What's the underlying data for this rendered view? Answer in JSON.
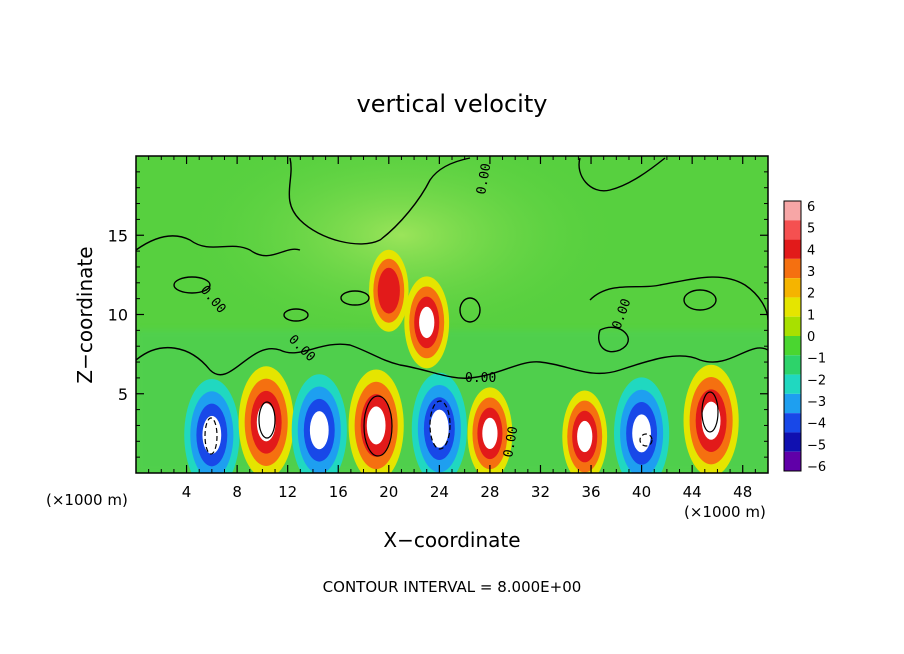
{
  "chart_data": {
    "type": "heatmap",
    "title": "vertical velocity",
    "xlabel": "X−coordinate",
    "ylabel": "Z−coordinate",
    "x_unit_left": "(×1000 m)",
    "x_unit_right": "(×1000 m)",
    "xlim": [
      0,
      50
    ],
    "ylim": [
      0,
      20
    ],
    "x_ticks": [
      4,
      8,
      12,
      16,
      20,
      24,
      28,
      32,
      36,
      40,
      44,
      48
    ],
    "y_ticks": [
      5,
      10,
      15
    ],
    "colorbar": {
      "ticks": [
        "6",
        "5",
        "4",
        "3",
        "2",
        "1",
        "0",
        "−1",
        "−2",
        "−3",
        "−4",
        "−5",
        "−6"
      ],
      "colors": [
        "#f7a6a6",
        "#f55050",
        "#e21a1a",
        "#f57010",
        "#f5b400",
        "#e5e500",
        "#a8e000",
        "#4ad630",
        "#2dd36a",
        "#20d8c0",
        "#1e9ff0",
        "#1848e8",
        "#1010b0",
        "#6000a8"
      ]
    },
    "contour_labels": [
      "0.00",
      "0.00",
      "0.00",
      "0.00",
      "0.00",
      "0.00"
    ],
    "w_cells": [
      {
        "x": 6.0,
        "z": 2.4,
        "w": -6
      },
      {
        "x": 10.3,
        "z": 3.2,
        "w": 6
      },
      {
        "x": 14.5,
        "z": 2.7,
        "w": -6
      },
      {
        "x": 19.0,
        "z": 3.0,
        "w": 6
      },
      {
        "x": 24.0,
        "z": 2.8,
        "w": -6
      },
      {
        "x": 28.0,
        "z": 2.5,
        "w": 4
      },
      {
        "x": 35.5,
        "z": 2.3,
        "w": 4
      },
      {
        "x": 40.0,
        "z": 2.5,
        "w": -6
      },
      {
        "x": 45.5,
        "z": 3.3,
        "w": 6
      },
      {
        "x": 20.0,
        "z": 11.5,
        "w": 3
      },
      {
        "x": 23.0,
        "z": 9.5,
        "w": 4
      }
    ],
    "footer": "CONTOUR INTERVAL = 8.000E+00"
  }
}
